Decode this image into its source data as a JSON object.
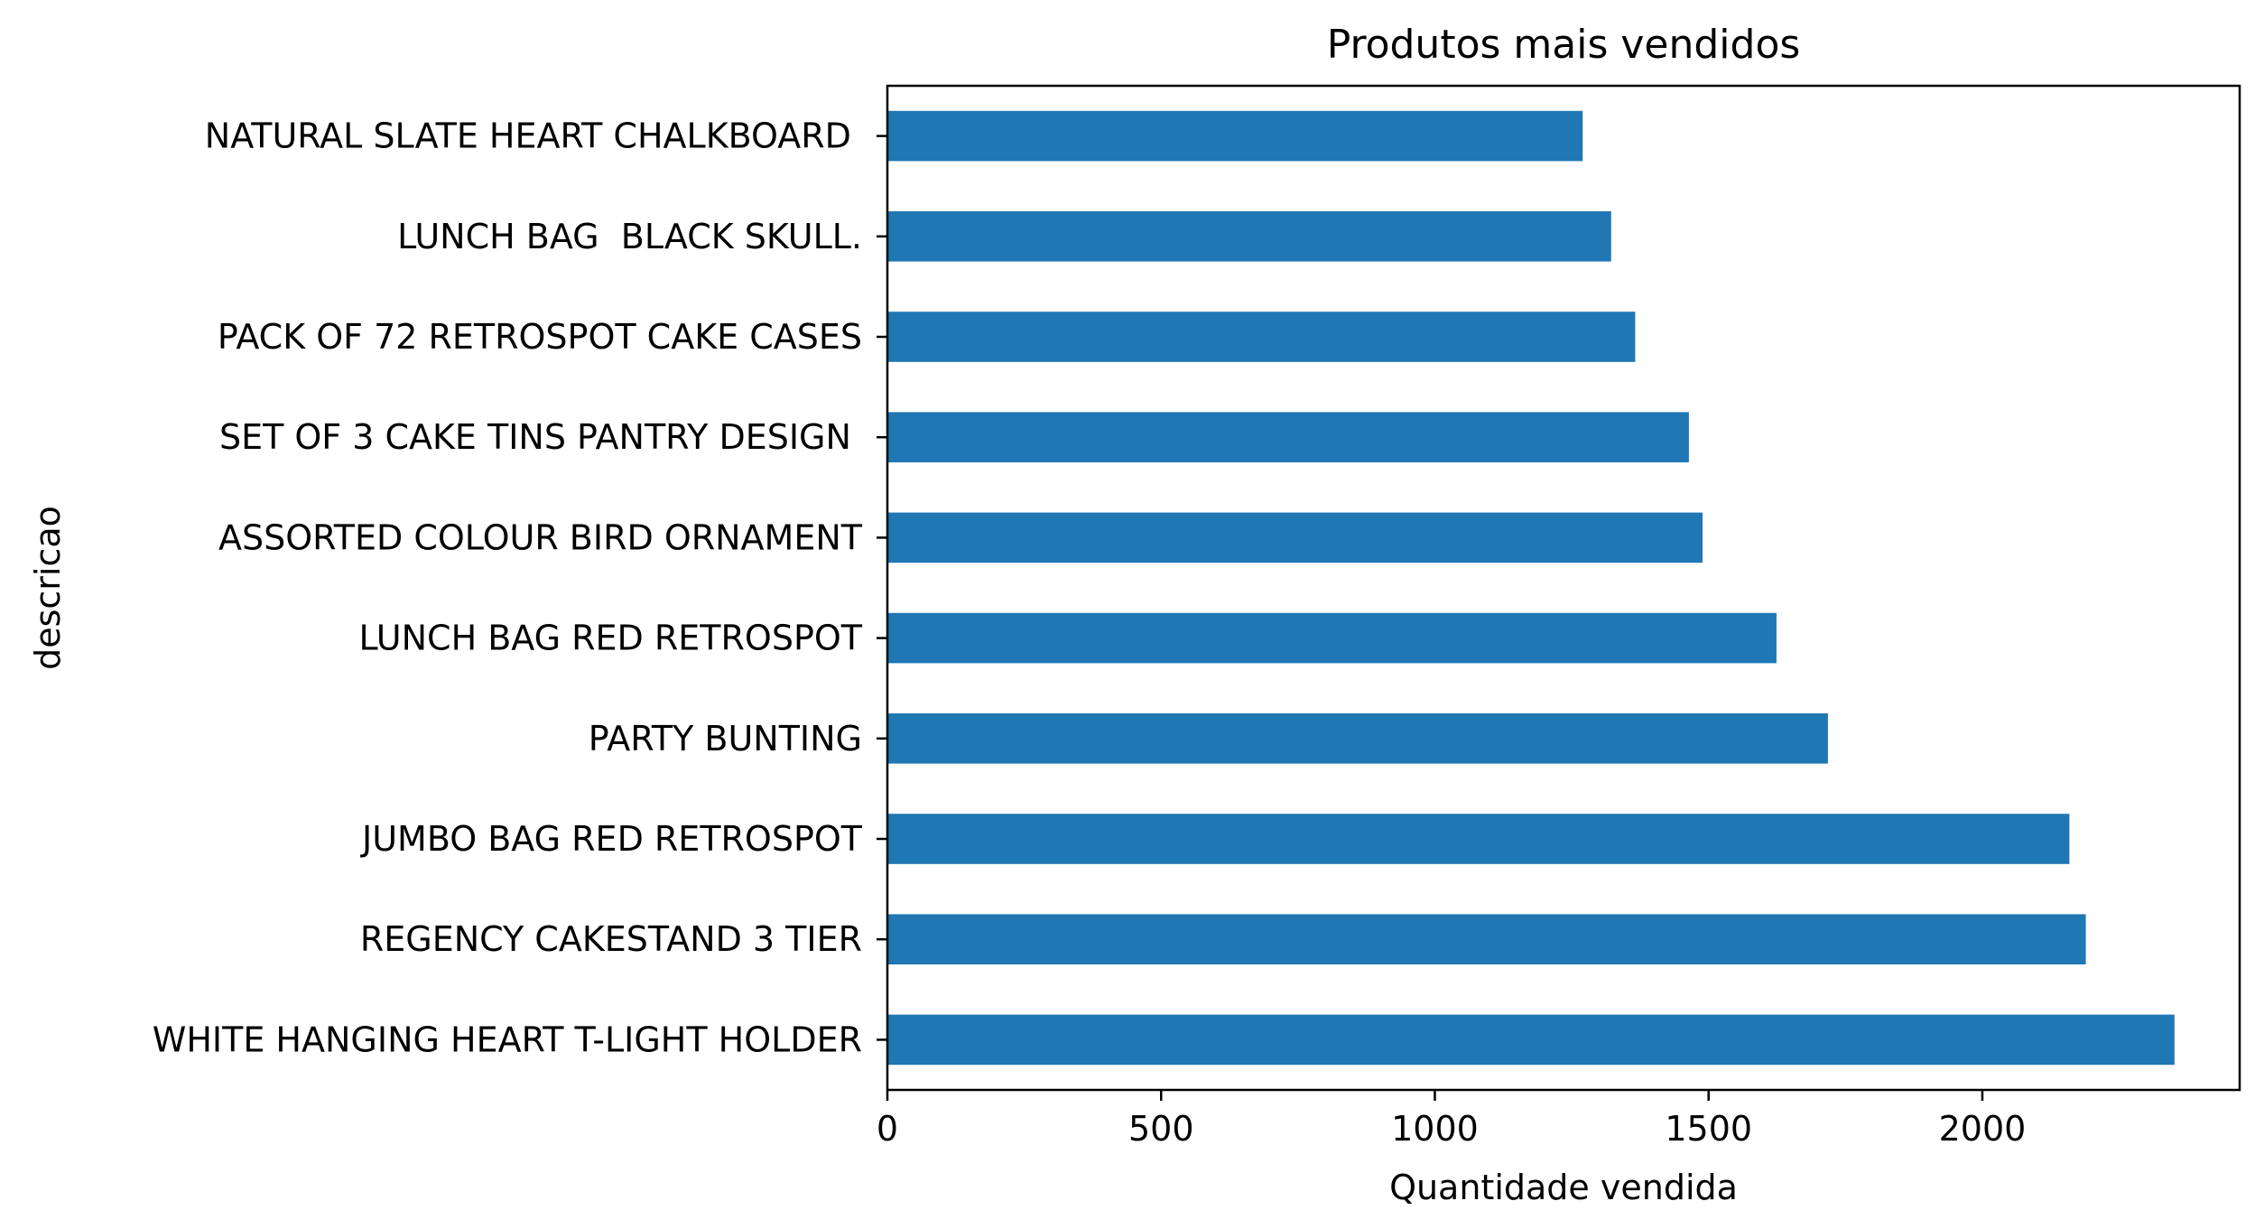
{
  "chart_data": {
    "type": "bar",
    "orientation": "horizontal",
    "title": "Produtos mais vendidos",
    "xlabel": "Quantidade vendida",
    "ylabel": "descricao",
    "categories": [
      "NATURAL SLATE HEART CHALKBOARD ",
      "LUNCH BAG  BLACK SKULL.",
      "PACK OF 72 RETROSPOT CAKE CASES",
      "SET OF 3 CAKE TINS PANTRY DESIGN ",
      "ASSORTED COLOUR BIRD ORNAMENT",
      "LUNCH BAG RED RETROSPOT",
      "PARTY BUNTING",
      "JUMBO BAG RED RETROSPOT",
      "REGENCY CAKESTAND 3 TIER",
      "WHITE HANGING HEART T-LIGHT HOLDER"
    ],
    "values": [
      1270,
      1322,
      1366,
      1464,
      1489,
      1624,
      1718,
      2159,
      2189,
      2351
    ],
    "xlim": [
      0,
      2470
    ],
    "xticks": [
      0,
      500,
      1000,
      1500,
      2000
    ],
    "grid": false,
    "legend": "none",
    "bar_color": "#1f77b4"
  }
}
